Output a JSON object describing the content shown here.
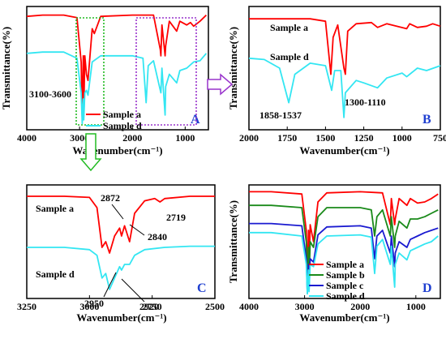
{
  "chart_data": [
    {
      "panel": "A",
      "type": "line",
      "x_reversed": true,
      "xlabel": "Wavenumber(cm⁻¹)",
      "ylabel": "Transmittance(%)",
      "xlim": [
        4000,
        560
      ],
      "x_ticks": [
        "4000",
        "3000",
        "2000",
        "1000"
      ],
      "panel_label": "A",
      "annotations": [
        "3100-3600"
      ],
      "legend": [
        "Sample a",
        "Sample d"
      ],
      "series": [
        {
          "name": "Sample a",
          "color": "#ff0000",
          "points": [
            [
              4000,
              0.92
            ],
            [
              3700,
              0.93
            ],
            [
              3300,
              0.93
            ],
            [
              3050,
              0.91
            ],
            [
              2970,
              0.55
            ],
            [
              2950,
              0.1
            ],
            [
              2930,
              0.6
            ],
            [
              2920,
              0.15
            ],
            [
              2900,
              0.6
            ],
            [
              2870,
              0.45
            ],
            [
              2840,
              0.4
            ],
            [
              2760,
              0.82
            ],
            [
              2720,
              0.78
            ],
            [
              2600,
              0.92
            ],
            [
              2000,
              0.93
            ],
            [
              1800,
              0.93
            ],
            [
              1600,
              0.93
            ],
            [
              1470,
              0.65
            ],
            [
              1460,
              0.6
            ],
            [
              1440,
              0.85
            ],
            [
              1380,
              0.6
            ],
            [
              1370,
              0.68
            ],
            [
              1300,
              0.88
            ],
            [
              1160,
              0.8
            ],
            [
              1100,
              0.88
            ],
            [
              970,
              0.85
            ],
            [
              900,
              0.87
            ],
            [
              840,
              0.84
            ],
            [
              720,
              0.88
            ],
            [
              600,
              0.93
            ]
          ]
        },
        {
          "name": "Sample d",
          "color": "#33e6f2",
          "points": [
            [
              4000,
              0.62
            ],
            [
              3700,
              0.63
            ],
            [
              3300,
              0.63
            ],
            [
              3050,
              0.58
            ],
            [
              2970,
              0.3
            ],
            [
              2950,
              0.05
            ],
            [
              2930,
              0.25
            ],
            [
              2920,
              0.08
            ],
            [
              2900,
              0.3
            ],
            [
              2870,
              0.32
            ],
            [
              2840,
              0.28
            ],
            [
              2760,
              0.55
            ],
            [
              2600,
              0.6
            ],
            [
              2000,
              0.6
            ],
            [
              1800,
              0.58
            ],
            [
              1740,
              0.22
            ],
            [
              1700,
              0.52
            ],
            [
              1600,
              0.56
            ],
            [
              1460,
              0.3
            ],
            [
              1440,
              0.5
            ],
            [
              1380,
              0.12
            ],
            [
              1370,
              0.35
            ],
            [
              1300,
              0.45
            ],
            [
              1160,
              0.38
            ],
            [
              1100,
              0.48
            ],
            [
              970,
              0.5
            ],
            [
              840,
              0.55
            ],
            [
              720,
              0.56
            ],
            [
              600,
              0.62
            ]
          ]
        }
      ]
    },
    {
      "panel": "B",
      "type": "line",
      "x_reversed": true,
      "xlabel": "Wavenumber(cm⁻¹)",
      "ylabel": "Transmittance(%)",
      "xlim": [
        2000,
        750
      ],
      "x_ticks": [
        "2000",
        "1750",
        "1500",
        "1250",
        "1000",
        "750"
      ],
      "panel_label": "B",
      "series_labels": [
        "Sample a",
        "Sample d"
      ],
      "annotations": [
        "1858-1537",
        "1300-1110"
      ],
      "series": [
        {
          "name": "Sample a",
          "color": "#ff0000",
          "points": [
            [
              2000,
              0.9
            ],
            [
              1750,
              0.9
            ],
            [
              1600,
              0.9
            ],
            [
              1500,
              0.88
            ],
            [
              1465,
              0.45
            ],
            [
              1450,
              0.75
            ],
            [
              1420,
              0.85
            ],
            [
              1380,
              0.5
            ],
            [
              1370,
              0.45
            ],
            [
              1355,
              0.8
            ],
            [
              1300,
              0.86
            ],
            [
              1200,
              0.87
            ],
            [
              1160,
              0.83
            ],
            [
              1100,
              0.86
            ],
            [
              970,
              0.82
            ],
            [
              950,
              0.86
            ],
            [
              900,
              0.83
            ],
            [
              840,
              0.84
            ],
            [
              800,
              0.86
            ],
            [
              750,
              0.84
            ]
          ]
        },
        {
          "name": "Sample d",
          "color": "#33e6f2",
          "points": [
            [
              2000,
              0.58
            ],
            [
              1900,
              0.57
            ],
            [
              1800,
              0.5
            ],
            [
              1740,
              0.22
            ],
            [
              1700,
              0.45
            ],
            [
              1600,
              0.54
            ],
            [
              1500,
              0.52
            ],
            [
              1460,
              0.32
            ],
            [
              1440,
              0.48
            ],
            [
              1400,
              0.48
            ],
            [
              1380,
              0.1
            ],
            [
              1370,
              0.3
            ],
            [
              1300,
              0.4
            ],
            [
              1250,
              0.38
            ],
            [
              1160,
              0.34
            ],
            [
              1100,
              0.42
            ],
            [
              1000,
              0.46
            ],
            [
              970,
              0.43
            ],
            [
              900,
              0.5
            ],
            [
              840,
              0.48
            ],
            [
              750,
              0.52
            ]
          ]
        }
      ]
    },
    {
      "panel": "C",
      "type": "line",
      "x_reversed": true,
      "xlabel": "Wavenumber(cm⁻¹)",
      "ylabel": "",
      "xlim": [
        3250,
        2500
      ],
      "x_ticks": [
        "3250",
        "3000",
        "2750",
        "2500"
      ],
      "panel_label": "C",
      "series_labels": [
        "Sample a",
        "Sample d"
      ],
      "annotations": [
        "2872",
        "2719",
        "2840",
        "2950",
        "2920"
      ],
      "series": [
        {
          "name": "Sample a",
          "color": "#ff0000",
          "points": [
            [
              3250,
              0.9
            ],
            [
              3100,
              0.9
            ],
            [
              3000,
              0.89
            ],
            [
              2970,
              0.8
            ],
            [
              2950,
              0.45
            ],
            [
              2935,
              0.5
            ],
            [
              2920,
              0.4
            ],
            [
              2900,
              0.55
            ],
            [
              2880,
              0.62
            ],
            [
              2872,
              0.55
            ],
            [
              2860,
              0.64
            ],
            [
              2840,
              0.5
            ],
            [
              2820,
              0.75
            ],
            [
              2780,
              0.86
            ],
            [
              2740,
              0.88
            ],
            [
              2719,
              0.85
            ],
            [
              2700,
              0.88
            ],
            [
              2600,
              0.9
            ],
            [
              2500,
              0.9
            ]
          ]
        },
        {
          "name": "Sample d",
          "color": "#33e6f2",
          "points": [
            [
              3250,
              0.45
            ],
            [
              3100,
              0.45
            ],
            [
              3000,
              0.43
            ],
            [
              2970,
              0.38
            ],
            [
              2950,
              0.18
            ],
            [
              2935,
              0.22
            ],
            [
              2920,
              0.08
            ],
            [
              2900,
              0.18
            ],
            [
              2880,
              0.28
            ],
            [
              2872,
              0.25
            ],
            [
              2860,
              0.3
            ],
            [
              2840,
              0.3
            ],
            [
              2820,
              0.38
            ],
            [
              2780,
              0.43
            ],
            [
              2700,
              0.45
            ],
            [
              2600,
              0.46
            ],
            [
              2500,
              0.46
            ]
          ]
        }
      ]
    },
    {
      "panel": "D",
      "type": "line",
      "x_reversed": true,
      "xlabel": "Wavenumber(cm⁻¹)",
      "ylabel": "Transmittance(%)",
      "xlim": [
        4000,
        560
      ],
      "x_ticks": [
        "4000",
        "3000",
        "2000",
        "1000"
      ],
      "panel_label": "D",
      "legend": [
        "Sample a",
        "Sample b",
        "Sample c",
        "Sample d"
      ],
      "series": [
        {
          "name": "Sample a",
          "color": "#ff0000",
          "points": [
            [
              4000,
              0.94
            ],
            [
              3600,
              0.94
            ],
            [
              3050,
              0.92
            ],
            [
              2970,
              0.6
            ],
            [
              2950,
              0.2
            ],
            [
              2930,
              0.6
            ],
            [
              2920,
              0.25
            ],
            [
              2900,
              0.65
            ],
            [
              2840,
              0.5
            ],
            [
              2760,
              0.85
            ],
            [
              2600,
              0.93
            ],
            [
              2000,
              0.94
            ],
            [
              1600,
              0.93
            ],
            [
              1460,
              0.65
            ],
            [
              1440,
              0.88
            ],
            [
              1380,
              0.65
            ],
            [
              1370,
              0.7
            ],
            [
              1300,
              0.88
            ],
            [
              1160,
              0.82
            ],
            [
              1100,
              0.88
            ],
            [
              970,
              0.84
            ],
            [
              840,
              0.85
            ],
            [
              720,
              0.88
            ],
            [
              600,
              0.92
            ]
          ]
        },
        {
          "name": "Sample b",
          "color": "#1a8a1a",
          "points": [
            [
              4000,
              0.82
            ],
            [
              3600,
              0.82
            ],
            [
              3050,
              0.8
            ],
            [
              2970,
              0.5
            ],
            [
              2950,
              0.12
            ],
            [
              2930,
              0.45
            ],
            [
              2920,
              0.15
            ],
            [
              2900,
              0.5
            ],
            [
              2840,
              0.45
            ],
            [
              2760,
              0.72
            ],
            [
              2600,
              0.8
            ],
            [
              2000,
              0.8
            ],
            [
              1800,
              0.78
            ],
            [
              1740,
              0.55
            ],
            [
              1700,
              0.72
            ],
            [
              1600,
              0.78
            ],
            [
              1460,
              0.55
            ],
            [
              1440,
              0.72
            ],
            [
              1380,
              0.45
            ],
            [
              1370,
              0.55
            ],
            [
              1300,
              0.68
            ],
            [
              1160,
              0.62
            ],
            [
              1100,
              0.7
            ],
            [
              970,
              0.7
            ],
            [
              840,
              0.72
            ],
            [
              720,
              0.75
            ],
            [
              600,
              0.78
            ]
          ]
        },
        {
          "name": "Sample c",
          "color": "#1a1ad0",
          "points": [
            [
              4000,
              0.66
            ],
            [
              3600,
              0.66
            ],
            [
              3050,
              0.64
            ],
            [
              2970,
              0.35
            ],
            [
              2950,
              0.05
            ],
            [
              2930,
              0.3
            ],
            [
              2920,
              0.08
            ],
            [
              2900,
              0.35
            ],
            [
              2840,
              0.32
            ],
            [
              2760,
              0.56
            ],
            [
              2600,
              0.63
            ],
            [
              2000,
              0.64
            ],
            [
              1800,
              0.62
            ],
            [
              1740,
              0.35
            ],
            [
              1700,
              0.55
            ],
            [
              1600,
              0.6
            ],
            [
              1460,
              0.4
            ],
            [
              1440,
              0.55
            ],
            [
              1380,
              0.28
            ],
            [
              1370,
              0.4
            ],
            [
              1300,
              0.5
            ],
            [
              1160,
              0.45
            ],
            [
              1100,
              0.52
            ],
            [
              970,
              0.55
            ],
            [
              840,
              0.58
            ],
            [
              720,
              0.6
            ],
            [
              600,
              0.62
            ]
          ]
        },
        {
          "name": "Sample d",
          "color": "#33e6f2",
          "points": [
            [
              4000,
              0.58
            ],
            [
              3600,
              0.58
            ],
            [
              3050,
              0.55
            ],
            [
              2970,
              0.3
            ],
            [
              2950,
              0.04
            ],
            [
              2930,
              0.25
            ],
            [
              2920,
              0.06
            ],
            [
              2900,
              0.3
            ],
            [
              2840,
              0.28
            ],
            [
              2760,
              0.48
            ],
            [
              2600,
              0.55
            ],
            [
              2000,
              0.56
            ],
            [
              1800,
              0.54
            ],
            [
              1740,
              0.22
            ],
            [
              1700,
              0.46
            ],
            [
              1600,
              0.52
            ],
            [
              1460,
              0.3
            ],
            [
              1440,
              0.46
            ],
            [
              1380,
              0.1
            ],
            [
              1370,
              0.3
            ],
            [
              1300,
              0.4
            ],
            [
              1160,
              0.34
            ],
            [
              1100,
              0.42
            ],
            [
              970,
              0.45
            ],
            [
              840,
              0.48
            ],
            [
              720,
              0.5
            ],
            [
              600,
              0.55
            ]
          ]
        }
      ]
    }
  ]
}
